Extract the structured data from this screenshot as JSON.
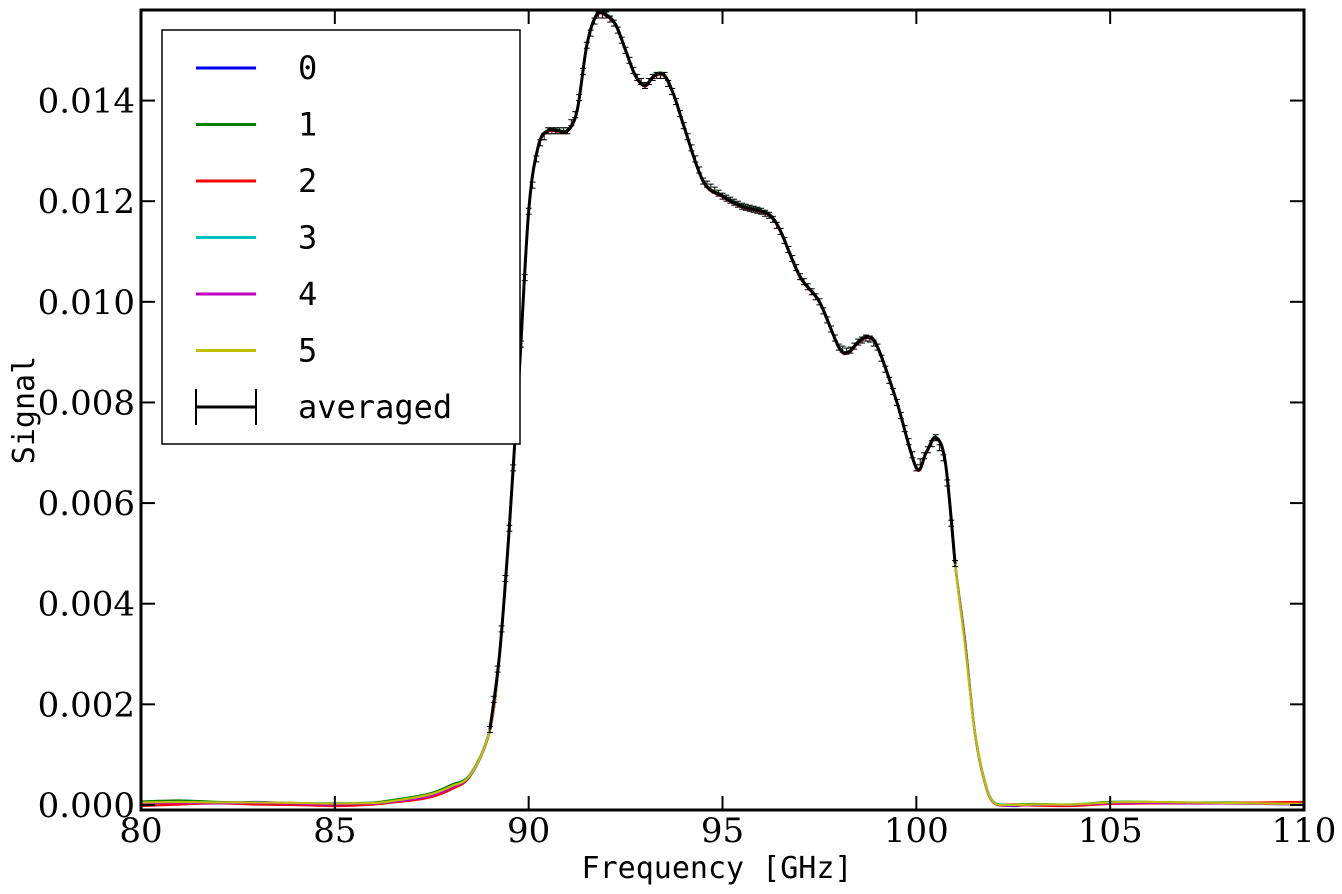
{
  "chart_data": {
    "type": "line",
    "xlabel": "Frequency [GHz]",
    "ylabel": "Signal",
    "xlim": [
      80,
      110
    ],
    "ylim": [
      -0.0001,
      0.0158
    ],
    "xticks": [
      80,
      85,
      90,
      95,
      100,
      105,
      110
    ],
    "xtick_labels": [
      "80",
      "85",
      "90",
      "95",
      "100",
      "105",
      "110"
    ],
    "yticks": [
      0.0,
      0.002,
      0.004,
      0.006,
      0.008,
      0.01,
      0.012,
      0.014
    ],
    "ytick_labels": [
      "0.000",
      "0.002",
      "0.004",
      "0.006",
      "0.008",
      "0.010",
      "0.012",
      "0.014"
    ],
    "legend_position": "upper-left",
    "grid": false,
    "x": [
      80.0,
      81.0,
      82.0,
      83.0,
      84.0,
      85.0,
      86.0,
      86.5,
      87.0,
      87.5,
      88.0,
      88.5,
      89.0,
      89.25,
      89.5,
      89.75,
      90.0,
      90.25,
      90.5,
      90.75,
      91.0,
      91.25,
      91.5,
      91.75,
      92.0,
      92.25,
      92.5,
      92.75,
      93.0,
      93.25,
      93.5,
      93.75,
      94.0,
      94.5,
      95.0,
      95.5,
      96.0,
      96.25,
      96.5,
      97.0,
      97.5,
      98.0,
      98.25,
      98.5,
      98.75,
      99.0,
      99.5,
      100.0,
      100.25,
      100.5,
      100.75,
      101.0,
      101.25,
      101.5,
      101.75,
      102.0,
      102.5,
      103.0,
      104.0,
      105.0,
      106.0,
      107.0,
      108.0,
      109.0,
      110.0
    ],
    "series": [
      {
        "name": "0",
        "color": "#0000ff",
        "values": [
          5e-05,
          7e-05,
          4e-05,
          6e-05,
          3e-05,
          2e-05,
          4e-05,
          8e-05,
          0.00012,
          0.0002,
          0.00035,
          0.0006,
          0.0015,
          0.003,
          0.0055,
          0.0085,
          0.0118,
          0.0131,
          0.0134,
          0.0134,
          0.0134,
          0.0138,
          0.0151,
          0.0157,
          0.0157,
          0.0155,
          0.015,
          0.0145,
          0.0143,
          0.0145,
          0.0145,
          0.0141,
          0.0135,
          0.0124,
          0.0121,
          0.0119,
          0.0118,
          0.0117,
          0.0114,
          0.0105,
          0.01,
          0.0091,
          0.009,
          0.0092,
          0.0093,
          0.0091,
          0.008,
          0.0067,
          0.007,
          0.0073,
          0.0068,
          0.0048,
          0.0033,
          0.0015,
          0.0005,
          5e-05,
          -2e-05,
          1e-05,
          0.0,
          4e-05,
          5e-05,
          4e-05,
          4e-05,
          3e-05,
          1e-05
        ]
      },
      {
        "name": "1",
        "color": "#008000",
        "values": [
          7e-05,
          9e-05,
          6e-05,
          5e-05,
          4e-05,
          3e-05,
          5e-05,
          0.0001,
          0.00016,
          0.00024,
          0.0004,
          0.00062,
          0.00152,
          0.00302,
          0.00552,
          0.00852,
          0.01182,
          0.01312,
          0.01342,
          0.01342,
          0.01342,
          0.01382,
          0.01512,
          0.01572,
          0.01572,
          0.01552,
          0.01502,
          0.01452,
          0.01432,
          0.01452,
          0.01452,
          0.01412,
          0.01352,
          0.01242,
          0.01212,
          0.01192,
          0.01182,
          0.01172,
          0.01142,
          0.01052,
          0.01002,
          0.00912,
          0.00902,
          0.00922,
          0.00932,
          0.00912,
          0.00802,
          0.00672,
          0.00702,
          0.00732,
          0.00682,
          0.00482,
          0.00332,
          0.00152,
          0.00052,
          6e-05,
          1e-05,
          2e-05,
          1e-05,
          6e-05,
          6e-05,
          5e-05,
          5e-05,
          4e-05,
          3e-05
        ]
      },
      {
        "name": "2",
        "color": "#ff0000",
        "values": [
          -2e-05,
          1e-05,
          3e-05,
          1e-05,
          0.0,
          -2e-05,
          1e-05,
          5e-05,
          9e-05,
          0.00016,
          0.00031,
          0.00058,
          0.00148,
          0.00298,
          0.00548,
          0.00848,
          0.01178,
          0.01308,
          0.01338,
          0.01338,
          0.01338,
          0.01378,
          0.01508,
          0.01568,
          0.01568,
          0.01548,
          0.01498,
          0.01448,
          0.01428,
          0.01448,
          0.01448,
          0.01408,
          0.01348,
          0.01238,
          0.01208,
          0.01188,
          0.01178,
          0.01168,
          0.01138,
          0.01048,
          0.00998,
          0.00908,
          0.00898,
          0.00918,
          0.00928,
          0.00908,
          0.00798,
          0.00668,
          0.00698,
          0.00728,
          0.00678,
          0.00478,
          0.00328,
          0.00148,
          0.00048,
          4e-05,
          1e-05,
          -1e-05,
          -2e-05,
          2e-05,
          3e-05,
          3e-05,
          4e-05,
          5e-05,
          6e-05
        ]
      },
      {
        "name": "3",
        "color": "#00bfbf",
        "values": [
          4e-05,
          5e-05,
          5e-05,
          4e-05,
          3e-05,
          4e-05,
          3e-05,
          7e-05,
          0.00013,
          0.00021,
          0.00036,
          0.00061,
          0.00151,
          0.00301,
          0.00551,
          0.00851,
          0.01181,
          0.01311,
          0.01341,
          0.01341,
          0.01341,
          0.01381,
          0.01511,
          0.01571,
          0.01571,
          0.01551,
          0.01501,
          0.01451,
          0.01431,
          0.01451,
          0.01451,
          0.01411,
          0.01351,
          0.01241,
          0.01211,
          0.01191,
          0.01181,
          0.01171,
          0.01141,
          0.01051,
          0.01001,
          0.00911,
          0.00901,
          0.00921,
          0.00931,
          0.00911,
          0.00801,
          0.00671,
          0.00701,
          0.00731,
          0.00681,
          0.00481,
          0.00331,
          0.00151,
          0.00051,
          6e-05,
          0.0,
          1e-05,
          1e-05,
          4e-05,
          5e-05,
          4e-05,
          3e-05,
          2e-05,
          1e-05
        ]
      },
      {
        "name": "4",
        "color": "#bf00bf",
        "values": [
          3e-05,
          4e-05,
          3e-05,
          4e-05,
          2e-05,
          1e-05,
          3e-05,
          7e-05,
          0.00011,
          0.00019,
          0.00034,
          0.00059,
          0.00149,
          0.00299,
          0.00549,
          0.00849,
          0.01179,
          0.01309,
          0.01339,
          0.01339,
          0.01339,
          0.01379,
          0.01509,
          0.01569,
          0.01569,
          0.01549,
          0.01499,
          0.01449,
          0.01429,
          0.01449,
          0.01449,
          0.01409,
          0.01349,
          0.01239,
          0.01209,
          0.01189,
          0.01179,
          0.01169,
          0.01139,
          0.01049,
          0.00999,
          0.00909,
          0.00899,
          0.00919,
          0.00929,
          0.00909,
          0.00799,
          0.00669,
          0.00699,
          0.00729,
          0.00679,
          0.00479,
          0.00329,
          0.00149,
          0.00049,
          4e-05,
          -1e-05,
          0.0,
          0.0,
          3e-05,
          4e-05,
          3e-05,
          3e-05,
          2e-05,
          1e-05
        ]
      },
      {
        "name": "5",
        "color": "#bfbf00",
        "values": [
          5e-05,
          6e-05,
          5e-05,
          5e-05,
          4e-05,
          3e-05,
          4e-05,
          8e-05,
          0.00014,
          0.00022,
          0.00037,
          0.0006,
          0.0015,
          0.003,
          0.0055,
          0.0085,
          0.0118,
          0.0131,
          0.0134,
          0.0134,
          0.0134,
          0.0138,
          0.0151,
          0.0157,
          0.0157,
          0.0155,
          0.015,
          0.0145,
          0.0143,
          0.0145,
          0.0145,
          0.0141,
          0.0135,
          0.0124,
          0.0121,
          0.0119,
          0.0118,
          0.0117,
          0.0114,
          0.0105,
          0.01,
          0.0091,
          0.009,
          0.0092,
          0.0093,
          0.0091,
          0.008,
          0.0067,
          0.007,
          0.0073,
          0.0068,
          0.0048,
          0.0032,
          0.0015,
          0.0005,
          5e-05,
          0.0,
          1e-05,
          1e-05,
          5e-05,
          6e-05,
          5e-05,
          4e-05,
          3e-05,
          2e-05
        ]
      },
      {
        "name": "averaged",
        "color": "#000000",
        "errorbars": true,
        "x_start": 89.0,
        "x_end": 101.0,
        "values": [
          5e-05,
          6e-05,
          4e-05,
          5e-05,
          3e-05,
          2e-05,
          3e-05,
          7e-05,
          0.00012,
          0.0002,
          0.00035,
          0.0006,
          0.0015,
          0.003,
          0.0055,
          0.0085,
          0.0118,
          0.0131,
          0.0134,
          0.0134,
          0.0134,
          0.0138,
          0.0151,
          0.0157,
          0.0157,
          0.0155,
          0.015,
          0.0145,
          0.0143,
          0.0145,
          0.0145,
          0.0141,
          0.0135,
          0.0124,
          0.0121,
          0.0119,
          0.0118,
          0.0117,
          0.0114,
          0.0105,
          0.01,
          0.0091,
          0.009,
          0.0092,
          0.0093,
          0.0091,
          0.008,
          0.0067,
          0.007,
          0.0073,
          0.0068,
          0.0048,
          0.0033,
          0.0015,
          0.0005,
          5e-05,
          0.0,
          1e-05,
          0.0,
          4e-05,
          5e-05,
          4e-05,
          4e-05,
          3e-05,
          1e-05
        ]
      }
    ]
  }
}
